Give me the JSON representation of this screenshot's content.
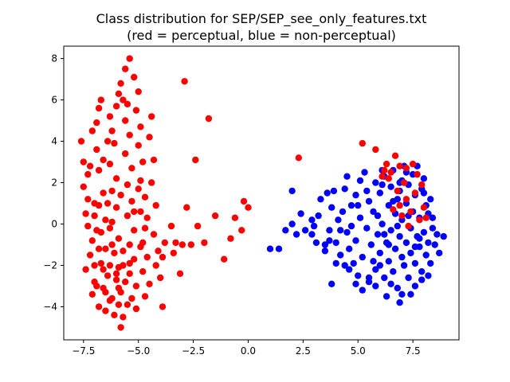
{
  "chart_data": {
    "type": "scatter",
    "title": "Class distribution for SEP/SEP_see_only_features.txt",
    "subtitle": "(red = perceptual, blue = non-perceptual)",
    "xlabel": "",
    "ylabel": "",
    "xlim": [
      -8.4,
      9.6
    ],
    "ylim": [
      -5.6,
      8.6
    ],
    "xticks": [
      -7.5,
      -5.0,
      -2.5,
      0.0,
      2.5,
      5.0,
      7.5
    ],
    "xtick_labels": [
      "−7.5",
      "−5.0",
      "−2.5",
      "0.0",
      "2.5",
      "5.0",
      "7.5"
    ],
    "yticks": [
      -4,
      -2,
      0,
      2,
      4,
      6,
      8
    ],
    "ytick_labels": [
      "−4",
      "−2",
      "0",
      "2",
      "4",
      "6",
      "8"
    ],
    "grid": false,
    "series": [
      {
        "color": "#0000ff",
        "points": [
          [
            1.0,
            -1.2
          ],
          [
            1.4,
            -1.2
          ],
          [
            1.7,
            -0.3
          ],
          [
            2.0,
            0.0
          ],
          [
            2.2,
            -0.5
          ],
          [
            2.4,
            0.5
          ],
          [
            2.0,
            1.6
          ],
          [
            2.6,
            -0.3
          ],
          [
            2.9,
            0.2
          ],
          [
            3.1,
            -0.9
          ],
          [
            3.2,
            0.4
          ],
          [
            3.3,
            1.2
          ],
          [
            3.5,
            -1.0
          ],
          [
            3.5,
            -1.3
          ],
          [
            3.6,
            1.5
          ],
          [
            3.7,
            -0.8
          ],
          [
            3.7,
            -0.3
          ],
          [
            3.8,
            0.8
          ],
          [
            3.9,
            1.6
          ],
          [
            4.0,
            -0.9
          ],
          [
            4.1,
            0.2
          ],
          [
            4.2,
            -1.5
          ],
          [
            4.3,
            0.6
          ],
          [
            4.4,
            1.7
          ],
          [
            4.5,
            -0.4
          ],
          [
            4.5,
            2.3
          ],
          [
            4.6,
            -1.2
          ],
          [
            4.6,
            -2.2
          ],
          [
            4.7,
            0.9
          ],
          [
            4.8,
            -1.9
          ],
          [
            4.9,
            -0.8
          ],
          [
            4.9,
            1.4
          ],
          [
            5.0,
            -2.5
          ],
          [
            5.1,
            0.3
          ],
          [
            5.1,
            2.1
          ],
          [
            5.2,
            -1.6
          ],
          [
            5.3,
            2.5
          ],
          [
            5.4,
            -0.2
          ],
          [
            5.5,
            1.1
          ],
          [
            5.5,
            -2.8
          ],
          [
            5.6,
            -1.0
          ],
          [
            5.7,
            0.6
          ],
          [
            5.8,
            -2.2
          ],
          [
            5.8,
            2.0
          ],
          [
            5.9,
            -0.5
          ],
          [
            6.0,
            1.5
          ],
          [
            6.0,
            -1.4
          ],
          [
            6.1,
            0.0
          ],
          [
            6.2,
            2.3
          ],
          [
            6.2,
            -2.6
          ],
          [
            6.3,
            -0.9
          ],
          [
            6.4,
            0.9
          ],
          [
            6.4,
            -1.8
          ],
          [
            6.5,
            1.8
          ],
          [
            6.5,
            -0.3
          ],
          [
            6.6,
            -2.3
          ],
          [
            6.6,
            2.6
          ],
          [
            6.7,
            0.5
          ],
          [
            6.7,
            -1.2
          ],
          [
            6.8,
            1.2
          ],
          [
            6.8,
            -3.1
          ],
          [
            6.9,
            -0.6
          ],
          [
            6.9,
            2.0
          ],
          [
            7.0,
            -1.6
          ],
          [
            7.0,
            0.2
          ],
          [
            7.1,
            2.8
          ],
          [
            7.1,
            -2.0
          ],
          [
            7.2,
            1.0
          ],
          [
            7.2,
            -0.9
          ],
          [
            7.3,
            -2.6
          ],
          [
            7.3,
            1.9
          ],
          [
            7.4,
            -0.2
          ],
          [
            7.4,
            -1.4
          ],
          [
            7.5,
            2.4
          ],
          [
            7.5,
            0.6
          ],
          [
            7.6,
            -1.9
          ],
          [
            7.6,
            1.4
          ],
          [
            7.7,
            -0.6
          ],
          [
            7.7,
            2.8
          ],
          [
            7.8,
            -1.1
          ],
          [
            7.8,
            0.3
          ],
          [
            7.9,
            -2.3
          ],
          [
            7.9,
            1.7
          ],
          [
            8.0,
            -0.4
          ],
          [
            8.0,
            2.2
          ],
          [
            8.1,
            -1.5
          ],
          [
            8.1,
            0.9
          ],
          [
            8.2,
            -0.9
          ],
          [
            8.3,
            -1.9
          ],
          [
            8.3,
            1.2
          ],
          [
            8.4,
            -0.2
          ],
          [
            8.5,
            -1.0
          ],
          [
            8.6,
            -0.5
          ],
          [
            8.7,
            -1.4
          ],
          [
            8.9,
            -0.6
          ],
          [
            6.9,
            -3.8
          ],
          [
            7.0,
            -3.4
          ],
          [
            5.5,
            -2.6
          ],
          [
            3.8,
            -2.9
          ],
          [
            4.9,
            -2.9
          ],
          [
            5.2,
            -3.2
          ],
          [
            6.3,
            -3.5
          ],
          [
            7.6,
            -3.0
          ],
          [
            7.9,
            -2.7
          ],
          [
            7.0,
            2.1
          ],
          [
            6.6,
            1.1
          ],
          [
            6.1,
            1.9
          ],
          [
            5.7,
            -1.8
          ],
          [
            6.8,
            -0.1
          ],
          [
            7.3,
            0.4
          ],
          [
            6.2,
            -0.5
          ],
          [
            5.9,
            0.4
          ],
          [
            6.4,
            -1.0
          ],
          [
            7.8,
            -0.7
          ],
          [
            8.2,
            0.5
          ],
          [
            6.0,
            -2.0
          ],
          [
            5.4,
            1.6
          ],
          [
            4.2,
            -0.3
          ],
          [
            3.0,
            -0.1
          ],
          [
            2.9,
            -0.5
          ],
          [
            4.7,
            -0.1
          ],
          [
            5.0,
            0.9
          ],
          [
            6.1,
            2.6
          ],
          [
            7.2,
            2.5
          ],
          [
            8.0,
            1.5
          ],
          [
            8.4,
            0.3
          ],
          [
            6.5,
            -2.9
          ],
          [
            5.8,
            -3.0
          ],
          [
            7.4,
            -3.4
          ],
          [
            8.2,
            -2.5
          ],
          [
            4.4,
            -2.0
          ],
          [
            4.0,
            -1.9
          ],
          [
            6.9,
            1.6
          ],
          [
            7.6,
            -1.1
          ]
        ]
      },
      {
        "color": "#ff0000",
        "points": [
          [
            -7.6,
            4.0
          ],
          [
            -7.5,
            3.0
          ],
          [
            -7.3,
            2.4
          ],
          [
            -7.5,
            1.8
          ],
          [
            -7.3,
            1.2
          ],
          [
            -7.4,
            0.5
          ],
          [
            -7.3,
            -0.1
          ],
          [
            -7.1,
            -0.8
          ],
          [
            -7.2,
            -1.5
          ],
          [
            -7.4,
            -2.2
          ],
          [
            -7.0,
            -2.8
          ],
          [
            -7.1,
            -3.4
          ],
          [
            -6.8,
            -4.0
          ],
          [
            -6.9,
            4.9
          ],
          [
            -6.8,
            5.6
          ],
          [
            -6.7,
            6.0
          ],
          [
            -6.9,
            3.6
          ],
          [
            -6.6,
            3.1
          ],
          [
            -6.8,
            2.6
          ],
          [
            -6.6,
            1.5
          ],
          [
            -6.8,
            0.9
          ],
          [
            -6.5,
            0.2
          ],
          [
            -6.7,
            -0.4
          ],
          [
            -6.5,
            -1.2
          ],
          [
            -6.7,
            -1.9
          ],
          [
            -6.4,
            -2.5
          ],
          [
            -6.6,
            -3.1
          ],
          [
            -6.3,
            -3.7
          ],
          [
            -6.5,
            -4.2
          ],
          [
            -6.3,
            5.2
          ],
          [
            -6.2,
            4.5
          ],
          [
            -6.1,
            3.9
          ],
          [
            -6.3,
            2.9
          ],
          [
            -6.0,
            2.2
          ],
          [
            -6.2,
            1.6
          ],
          [
            -6.0,
            0.8
          ],
          [
            -6.2,
            0.1
          ],
          [
            -5.9,
            -0.7
          ],
          [
            -6.1,
            -1.4
          ],
          [
            -5.9,
            -2.1
          ],
          [
            -6.0,
            -2.7
          ],
          [
            -5.8,
            -3.3
          ],
          [
            -5.9,
            -3.9
          ],
          [
            -5.7,
            -4.5
          ],
          [
            -5.8,
            -5.0
          ],
          [
            -5.9,
            6.3
          ],
          [
            -5.8,
            6.8
          ],
          [
            -5.6,
            7.5
          ],
          [
            -5.4,
            8.0
          ],
          [
            -5.5,
            5.8
          ],
          [
            -5.6,
            5.0
          ],
          [
            -5.4,
            4.3
          ],
          [
            -5.6,
            3.4
          ],
          [
            -5.3,
            2.7
          ],
          [
            -5.5,
            1.9
          ],
          [
            -5.3,
            1.1
          ],
          [
            -5.5,
            0.4
          ],
          [
            -5.2,
            -0.3
          ],
          [
            -5.4,
            -1.0
          ],
          [
            -5.2,
            -1.7
          ],
          [
            -5.4,
            -2.4
          ],
          [
            -5.1,
            -3.0
          ],
          [
            -5.3,
            -3.6
          ],
          [
            -5.1,
            -4.1
          ],
          [
            -5.2,
            7.1
          ],
          [
            -5.0,
            6.4
          ],
          [
            -5.1,
            5.5
          ],
          [
            -4.9,
            4.7
          ],
          [
            -5.0,
            3.8
          ],
          [
            -4.8,
            3.0
          ],
          [
            -4.9,
            2.1
          ],
          [
            -4.7,
            1.3
          ],
          [
            -4.9,
            0.6
          ],
          [
            -4.7,
            -0.2
          ],
          [
            -4.8,
            -0.9
          ],
          [
            -4.6,
            -1.6
          ],
          [
            -4.8,
            -2.3
          ],
          [
            -4.5,
            -2.9
          ],
          [
            -4.7,
            -3.5
          ],
          [
            -4.4,
            5.2
          ],
          [
            -4.5,
            4.2
          ],
          [
            -4.3,
            3.1
          ],
          [
            -4.4,
            2.0
          ],
          [
            -4.2,
            0.9
          ],
          [
            -4.3,
            -0.5
          ],
          [
            -4.1,
            -1.3
          ],
          [
            -4.2,
            -2.0
          ],
          [
            -4.0,
            -2.6
          ],
          [
            -3.9,
            -1.6
          ],
          [
            -3.9,
            -4.0
          ],
          [
            -3.8,
            -0.9
          ],
          [
            -3.5,
            -0.1
          ],
          [
            -3.4,
            -1.4
          ],
          [
            -3.3,
            -0.9
          ],
          [
            -3.1,
            -2.4
          ],
          [
            -3.0,
            -1.0
          ],
          [
            -2.9,
            6.9
          ],
          [
            -2.8,
            0.8
          ],
          [
            -2.6,
            -1.0
          ],
          [
            -2.4,
            3.1
          ],
          [
            -2.3,
            -0.1
          ],
          [
            -2.0,
            -0.9
          ],
          [
            -1.8,
            5.1
          ],
          [
            -1.5,
            0.4
          ],
          [
            -1.1,
            -1.7
          ],
          [
            -0.8,
            -0.7
          ],
          [
            -0.6,
            0.3
          ],
          [
            -0.3,
            -0.3
          ],
          [
            -0.2,
            1.1
          ],
          [
            0.0,
            0.8
          ],
          [
            2.3,
            3.2
          ],
          [
            5.2,
            3.9
          ],
          [
            5.8,
            3.6
          ],
          [
            6.3,
            2.9
          ],
          [
            6.5,
            2.5
          ],
          [
            6.7,
            3.3
          ],
          [
            6.9,
            2.8
          ],
          [
            7.1,
            2.0
          ],
          [
            7.2,
            1.2
          ],
          [
            7.4,
            0.6
          ],
          [
            7.6,
            1.5
          ],
          [
            7.8,
            0.2
          ],
          [
            8.0,
            0.8
          ],
          [
            6.4,
            2.2
          ],
          [
            6.8,
            1.6
          ],
          [
            7.0,
            0.4
          ],
          [
            7.3,
            -0.1
          ],
          [
            7.7,
            2.4
          ],
          [
            6.6,
            0.7
          ],
          [
            7.5,
            2.9
          ],
          [
            6.2,
            2.6
          ],
          [
            6.9,
            0.9
          ],
          [
            8.1,
            0.3
          ],
          [
            7.9,
            1.9
          ],
          [
            6.1,
            2.3
          ],
          [
            7.2,
            2.7
          ],
          [
            -6.6,
            -2.2
          ],
          [
            -6.3,
            -2.0
          ],
          [
            -6.0,
            -2.4
          ],
          [
            -5.7,
            -2.0
          ],
          [
            -6.5,
            -3.3
          ],
          [
            -6.2,
            -3.6
          ],
          [
            -5.9,
            -3.1
          ],
          [
            -5.6,
            -2.8
          ],
          [
            -7.0,
            -2.0
          ],
          [
            -6.9,
            -3.0
          ],
          [
            -6.1,
            -4.4
          ],
          [
            -5.5,
            -3.9
          ],
          [
            -6.4,
            1.0
          ],
          [
            -7.0,
            0.4
          ],
          [
            -6.9,
            -0.3
          ],
          [
            -7.2,
            2.8
          ],
          [
            -6.4,
            4.0
          ],
          [
            -7.1,
            4.5
          ],
          [
            -6.0,
            5.7
          ],
          [
            -5.7,
            6.0
          ],
          [
            -6.2,
            -1.0
          ],
          [
            -5.7,
            -1.3
          ],
          [
            -6.3,
            -0.2
          ],
          [
            -5.2,
            0.6
          ],
          [
            -4.6,
            0.3
          ],
          [
            -5.0,
            1.7
          ],
          [
            -6.8,
            -1.2
          ],
          [
            -7.0,
            1.0
          ],
          [
            -5.8,
            1.4
          ],
          [
            -5.4,
            -1.9
          ],
          [
            -4.9,
            -1.1
          ]
        ]
      }
    ]
  }
}
